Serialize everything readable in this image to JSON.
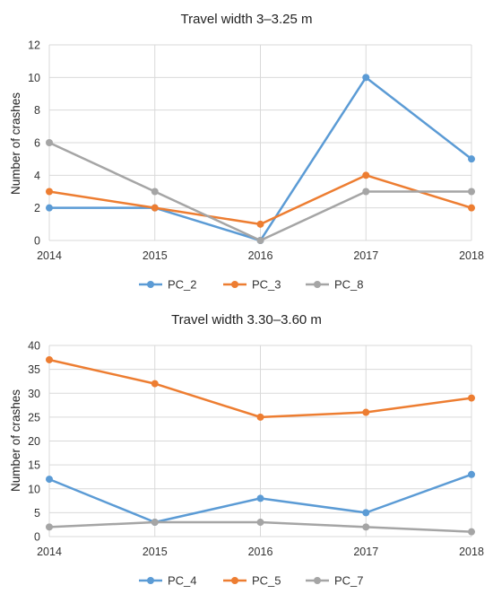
{
  "chart_data": [
    {
      "type": "line",
      "title": "Travel width 3–3.25 m",
      "xlabel": "",
      "ylabel": "Number of crashes",
      "categories": [
        "2014",
        "2015",
        "2016",
        "2017",
        "2018"
      ],
      "ylim": [
        0,
        12
      ],
      "yticks": [
        "0",
        "2",
        "4",
        "6",
        "8",
        "10",
        "12"
      ],
      "grid": true,
      "legend_position": "bottom",
      "series": [
        {
          "name": "PC_2",
          "color": "#5b9bd5",
          "values": [
            2,
            2,
            0,
            10,
            5
          ]
        },
        {
          "name": "PC_3",
          "color": "#ed7d31",
          "values": [
            3,
            2,
            1,
            4,
            2
          ]
        },
        {
          "name": "PC_8",
          "color": "#a5a5a5",
          "values": [
            6,
            3,
            0,
            3,
            3
          ]
        }
      ]
    },
    {
      "type": "line",
      "title": "Travel width 3.30–3.60 m",
      "xlabel": "",
      "ylabel": "Number of crashes",
      "categories": [
        "2014",
        "2015",
        "2016",
        "2017",
        "2018"
      ],
      "ylim": [
        0,
        40
      ],
      "yticks": [
        "0",
        "5",
        "10",
        "15",
        "20",
        "25",
        "30",
        "35",
        "40"
      ],
      "grid": true,
      "legend_position": "bottom",
      "series": [
        {
          "name": "PC_4",
          "color": "#5b9bd5",
          "values": [
            12,
            3,
            8,
            5,
            13
          ]
        },
        {
          "name": "PC_5",
          "color": "#ed7d31",
          "values": [
            37,
            32,
            25,
            26,
            29
          ]
        },
        {
          "name": "PC_7",
          "color": "#a5a5a5",
          "values": [
            2,
            3,
            3,
            2,
            1
          ]
        }
      ]
    }
  ]
}
